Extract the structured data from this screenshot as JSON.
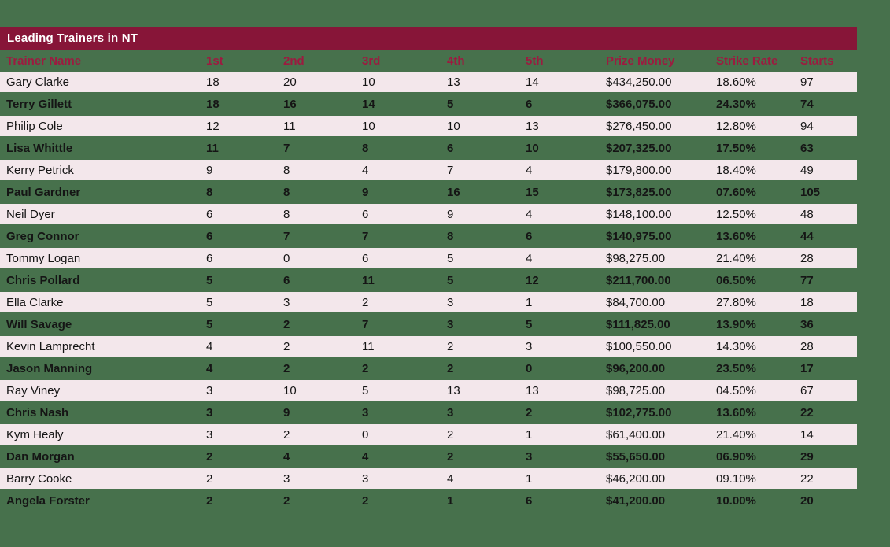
{
  "title": "Leading Trainers in NT",
  "colors": {
    "background_green": "#47714C",
    "title_bar_maroon": "#871538",
    "row_pink": "#F3E7EB",
    "header_text_crimson": "#9C1B40",
    "title_text": "#FFFFFF",
    "body_text": "#151515"
  },
  "table": {
    "columns": [
      "Trainer Name",
      "1st",
      "2nd",
      "3rd",
      "4th",
      "5th",
      "Prize Money",
      "Strike Rate",
      "Starts"
    ],
    "rows": [
      [
        "Gary Clarke",
        "18",
        "20",
        "10",
        "13",
        "14",
        "$434,250.00",
        "18.60%",
        "97"
      ],
      [
        "Terry Gillett",
        "18",
        "16",
        "14",
        "5",
        "6",
        "$366,075.00",
        "24.30%",
        "74"
      ],
      [
        "Philip Cole",
        "12",
        "11",
        "10",
        "10",
        "13",
        "$276,450.00",
        "12.80%",
        "94"
      ],
      [
        "Lisa Whittle",
        "11",
        "7",
        "8",
        "6",
        "10",
        "$207,325.00",
        "17.50%",
        "63"
      ],
      [
        "Kerry Petrick",
        "9",
        "8",
        "4",
        "7",
        "4",
        "$179,800.00",
        "18.40%",
        "49"
      ],
      [
        "Paul Gardner",
        "8",
        "8",
        "9",
        "16",
        "15",
        "$173,825.00",
        "07.60%",
        "105"
      ],
      [
        "Neil Dyer",
        "6",
        "8",
        "6",
        "9",
        "4",
        "$148,100.00",
        "12.50%",
        "48"
      ],
      [
        "Greg Connor",
        "6",
        "7",
        "7",
        "8",
        "6",
        "$140,975.00",
        "13.60%",
        "44"
      ],
      [
        "Tommy Logan",
        "6",
        "0",
        "6",
        "5",
        "4",
        "$98,275.00",
        "21.40%",
        "28"
      ],
      [
        "Chris Pollard",
        "5",
        "6",
        "11",
        "5",
        "12",
        "$211,700.00",
        "06.50%",
        "77"
      ],
      [
        "Ella Clarke",
        "5",
        "3",
        "2",
        "3",
        "1",
        "$84,700.00",
        "27.80%",
        "18"
      ],
      [
        "Will Savage",
        "5",
        "2",
        "7",
        "3",
        "5",
        "$111,825.00",
        "13.90%",
        "36"
      ],
      [
        "Kevin Lamprecht",
        "4",
        "2",
        "11",
        "2",
        "3",
        "$100,550.00",
        "14.30%",
        "28"
      ],
      [
        "Jason Manning",
        "4",
        "2",
        "2",
        "2",
        "0",
        "$96,200.00",
        "23.50%",
        "17"
      ],
      [
        "Ray Viney",
        "3",
        "10",
        "5",
        "13",
        "13",
        "$98,725.00",
        "04.50%",
        "67"
      ],
      [
        "Chris Nash",
        "3",
        "9",
        "3",
        "3",
        "2",
        "$102,775.00",
        "13.60%",
        "22"
      ],
      [
        "Kym Healy",
        "3",
        "2",
        "0",
        "2",
        "1",
        "$61,400.00",
        "21.40%",
        "14"
      ],
      [
        "Dan Morgan",
        "2",
        "4",
        "4",
        "2",
        "3",
        "$55,650.00",
        "06.90%",
        "29"
      ],
      [
        "Barry Cooke",
        "2",
        "3",
        "3",
        "4",
        "1",
        "$46,200.00",
        "09.10%",
        "22"
      ],
      [
        "Angela Forster",
        "2",
        "2",
        "2",
        "1",
        "6",
        "$41,200.00",
        "10.00%",
        "20"
      ]
    ]
  }
}
